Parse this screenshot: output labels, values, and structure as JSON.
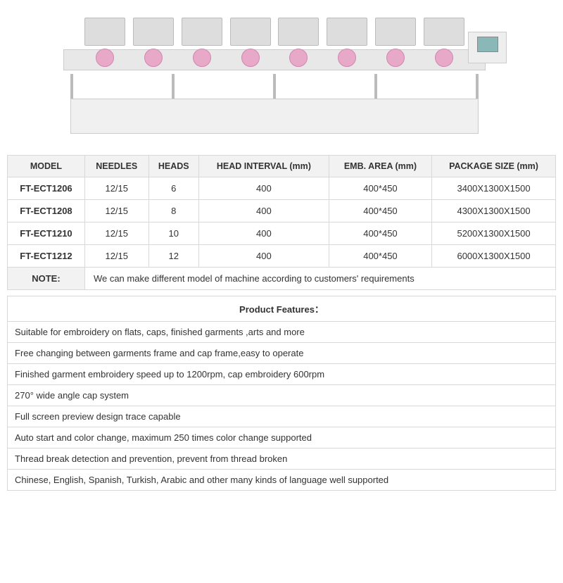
{
  "specs": {
    "headers": [
      "MODEL",
      "NEEDLES",
      "HEADS",
      "HEAD INTERVAL (mm)",
      "EMB. AREA (mm)",
      "PACKAGE SIZE (mm)"
    ],
    "rows": [
      {
        "model": "FT-ECT1206",
        "needles": "12/15",
        "heads": "6",
        "interval": "400",
        "area": "400*450",
        "pkg": "3400X1300X1500"
      },
      {
        "model": "FT-ECT1208",
        "needles": "12/15",
        "heads": "8",
        "interval": "400",
        "area": "400*450",
        "pkg": "4300X1300X1500"
      },
      {
        "model": "FT-ECT1210",
        "needles": "12/15",
        "heads": "10",
        "interval": "400",
        "area": "400*450",
        "pkg": "5200X1300X1500"
      },
      {
        "model": "FT-ECT1212",
        "needles": "12/15",
        "heads": "12",
        "interval": "400",
        "area": "400*450",
        "pkg": "6000X1300X1500"
      }
    ],
    "note_label": "NOTE:",
    "note_text": "We can make different model of machine according to customers' requirements"
  },
  "features": {
    "title": "Product Features：",
    "items": [
      "Suitable for embroidery on flats, caps, finished garments ,arts and more",
      "Free changing between garments frame and cap frame,easy to operate",
      "Finished garment embroidery speed up to 1200rpm, cap embroidery 600rpm",
      "270° wide angle cap system",
      "Full screen preview design trace capable",
      "Auto start and color change, maximum 250 times color change supported",
      "Thread break detection and prevention, prevent from thread broken",
      "Chinese, English, Spanish, Turkish, Arabic and other many kinds of language well supported"
    ]
  },
  "image": {
    "num_heads": 8
  }
}
